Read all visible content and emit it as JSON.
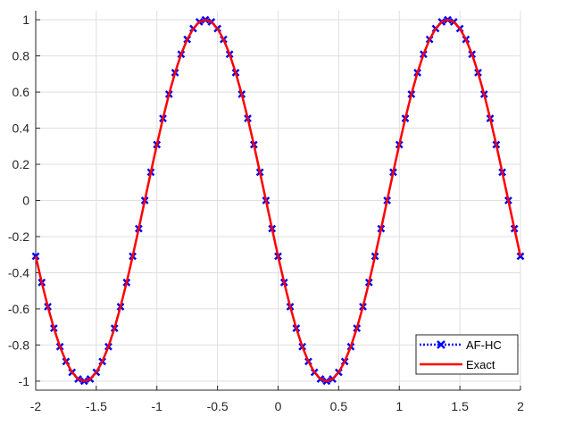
{
  "chart_data": {
    "type": "line",
    "title": "",
    "xlabel": "",
    "ylabel": "",
    "xlim": [
      -2,
      2
    ],
    "ylim": [
      -1.05,
      1.05
    ],
    "x_ticks": [
      -2,
      -1.5,
      -1,
      -0.5,
      0,
      0.5,
      1,
      1.5,
      2
    ],
    "x_tick_labels": [
      "-2",
      "-1.5",
      "-1",
      "-0.5",
      "0",
      "0.5",
      "1",
      "1.5",
      "2"
    ],
    "y_ticks": [
      -1,
      -0.8,
      -0.6,
      -0.4,
      -0.2,
      0,
      0.2,
      0.4,
      0.6,
      0.8,
      1
    ],
    "y_tick_labels": [
      "-1",
      "-0.8",
      "-0.6",
      "-0.4",
      "-0.2",
      "0",
      "0.2",
      "0.4",
      "0.6",
      "0.8",
      "1"
    ],
    "grid": true,
    "legend_position": "bottom-right",
    "series": [
      {
        "name": "AF-HC",
        "style": "dotted line with x markers",
        "color": "#0000ff",
        "x": [
          -2.0,
          -1.95,
          -1.9,
          -1.85,
          -1.8,
          -1.75,
          -1.7,
          -1.65,
          -1.6,
          -1.55,
          -1.5,
          -1.45,
          -1.4,
          -1.35,
          -1.3,
          -1.25,
          -1.2,
          -1.15,
          -1.1,
          -1.05,
          -1.0,
          -0.95,
          -0.9,
          -0.85,
          -0.8,
          -0.75,
          -0.7,
          -0.65,
          -0.6,
          -0.55,
          -0.5,
          -0.45,
          -0.4,
          -0.35,
          -0.3,
          -0.25,
          -0.2,
          -0.15,
          -0.1,
          -0.05,
          0.0,
          0.05,
          0.1,
          0.15,
          0.2,
          0.25,
          0.3,
          0.35,
          0.4,
          0.45,
          0.5,
          0.55,
          0.6,
          0.65,
          0.7,
          0.75,
          0.8,
          0.85,
          0.9,
          0.95,
          1.0,
          1.05,
          1.1,
          1.15,
          1.2,
          1.25,
          1.3,
          1.35,
          1.4,
          1.45,
          1.5,
          1.55,
          1.6,
          1.65,
          1.7,
          1.75,
          1.8,
          1.85,
          1.9,
          1.95,
          2.0
        ],
        "y": [
          -0.309,
          -0.454,
          -0.588,
          -0.707,
          -0.809,
          -0.891,
          -0.951,
          -0.988,
          -1.0,
          -0.988,
          -0.951,
          -0.891,
          -0.809,
          -0.707,
          -0.588,
          -0.454,
          -0.309,
          -0.156,
          0.0,
          0.156,
          0.309,
          0.454,
          0.588,
          0.707,
          0.809,
          0.891,
          0.951,
          0.988,
          1.0,
          0.988,
          0.951,
          0.891,
          0.809,
          0.707,
          0.588,
          0.454,
          0.309,
          0.156,
          0.0,
          -0.156,
          -0.309,
          -0.454,
          -0.588,
          -0.707,
          -0.809,
          -0.891,
          -0.951,
          -0.988,
          -1.0,
          -0.988,
          -0.951,
          -0.891,
          -0.809,
          -0.707,
          -0.588,
          -0.454,
          -0.309,
          -0.156,
          0.0,
          0.156,
          0.309,
          0.454,
          0.588,
          0.707,
          0.809,
          0.891,
          0.951,
          0.988,
          1.0,
          0.988,
          0.951,
          0.891,
          0.809,
          0.707,
          0.588,
          0.454,
          0.309,
          0.156,
          0.0,
          -0.156,
          -0.309
        ]
      },
      {
        "name": "Exact",
        "style": "solid line",
        "color": "#ff0000",
        "x": [
          -2.0,
          -1.95,
          -1.9,
          -1.85,
          -1.8,
          -1.75,
          -1.7,
          -1.65,
          -1.6,
          -1.55,
          -1.5,
          -1.45,
          -1.4,
          -1.35,
          -1.3,
          -1.25,
          -1.2,
          -1.15,
          -1.1,
          -1.05,
          -1.0,
          -0.95,
          -0.9,
          -0.85,
          -0.8,
          -0.75,
          -0.7,
          -0.65,
          -0.6,
          -0.55,
          -0.5,
          -0.45,
          -0.4,
          -0.35,
          -0.3,
          -0.25,
          -0.2,
          -0.15,
          -0.1,
          -0.05,
          0.0,
          0.05,
          0.1,
          0.15,
          0.2,
          0.25,
          0.3,
          0.35,
          0.4,
          0.45,
          0.5,
          0.55,
          0.6,
          0.65,
          0.7,
          0.75,
          0.8,
          0.85,
          0.9,
          0.95,
          1.0,
          1.05,
          1.1,
          1.15,
          1.2,
          1.25,
          1.3,
          1.35,
          1.4,
          1.45,
          1.5,
          1.55,
          1.6,
          1.65,
          1.7,
          1.75,
          1.8,
          1.85,
          1.9,
          1.95,
          2.0
        ],
        "y": [
          -0.309,
          -0.454,
          -0.588,
          -0.707,
          -0.809,
          -0.891,
          -0.951,
          -0.988,
          -1.0,
          -0.988,
          -0.951,
          -0.891,
          -0.809,
          -0.707,
          -0.588,
          -0.454,
          -0.309,
          -0.156,
          0.0,
          0.156,
          0.309,
          0.454,
          0.588,
          0.707,
          0.809,
          0.891,
          0.951,
          0.988,
          1.0,
          0.988,
          0.951,
          0.891,
          0.809,
          0.707,
          0.588,
          0.454,
          0.309,
          0.156,
          0.0,
          -0.156,
          -0.309,
          -0.454,
          -0.588,
          -0.707,
          -0.809,
          -0.891,
          -0.951,
          -0.988,
          -1.0,
          -0.988,
          -0.951,
          -0.891,
          -0.809,
          -0.707,
          -0.588,
          -0.454,
          -0.309,
          -0.156,
          0.0,
          0.156,
          0.309,
          0.454,
          0.588,
          0.707,
          0.809,
          0.891,
          0.951,
          0.988,
          1.0,
          0.988,
          0.951,
          0.891,
          0.809,
          0.707,
          0.588,
          0.454,
          0.309,
          0.156,
          0.0,
          -0.156,
          -0.309
        ]
      }
    ]
  }
}
